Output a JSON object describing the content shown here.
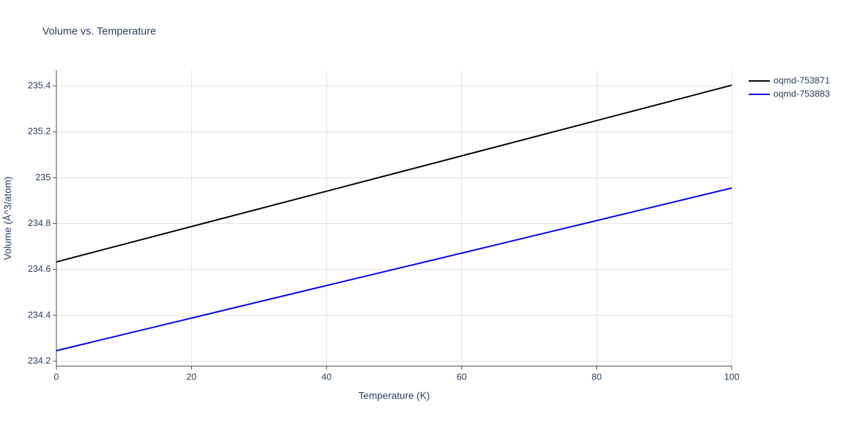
{
  "chart_data": {
    "type": "line",
    "title": "Volume vs. Temperature",
    "x_label": "Temperature (K)",
    "y_label": "Volume (Å^3/atom)",
    "x": [
      0,
      20,
      40,
      60,
      80,
      100
    ],
    "series": [
      {
        "name": "oqmd-753871",
        "color": "#000000",
        "values": [
          234.633,
          234.787,
          234.941,
          235.095,
          235.249,
          235.403
        ]
      },
      {
        "name": "oqmd-753883",
        "color": "#0000ee",
        "values": [
          234.246,
          234.388,
          234.53,
          234.671,
          234.813,
          234.955
        ]
      }
    ],
    "xlim": [
      0,
      100
    ],
    "xticks": [
      0,
      20,
      40,
      60,
      80,
      100
    ],
    "ylim": [
      234.1785,
      235.4675
    ],
    "yticks": [
      234.2,
      234.4,
      234.6,
      234.8,
      235,
      235.2,
      235.4
    ],
    "grid": true,
    "legend": "outside-right"
  }
}
